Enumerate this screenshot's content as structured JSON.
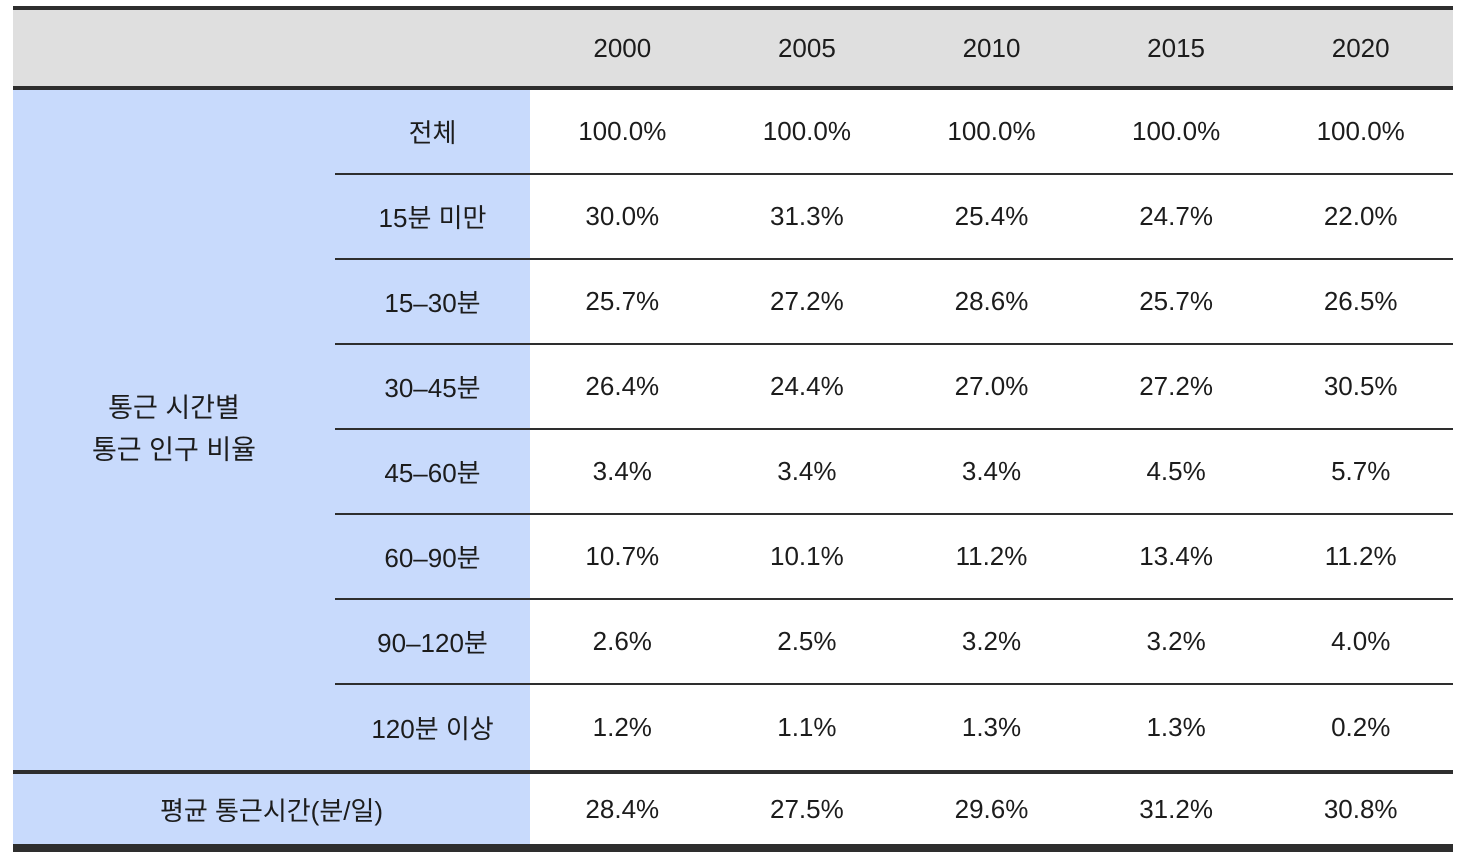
{
  "colors": {
    "header_bg": "#dfdfdf",
    "label_bg": "#c8dafc",
    "border": "#2e2e2e",
    "text": "#1c1c1c"
  },
  "table": {
    "group_label_line1": "통근 시간별",
    "group_label_line2": "통근 인구 비율",
    "years": [
      "2000",
      "2005",
      "2010",
      "2015",
      "2020"
    ],
    "rows": [
      {
        "label": "전체",
        "values": [
          "100.0%",
          "100.0%",
          "100.0%",
          "100.0%",
          "100.0%"
        ]
      },
      {
        "label": "15분 미만",
        "values": [
          "30.0%",
          "31.3%",
          "25.4%",
          "24.7%",
          "22.0%"
        ]
      },
      {
        "label": "15–30분",
        "values": [
          "25.7%",
          "27.2%",
          "28.6%",
          "25.7%",
          "26.5%"
        ]
      },
      {
        "label": "30–45분",
        "values": [
          "26.4%",
          "24.4%",
          "27.0%",
          "27.2%",
          "30.5%"
        ]
      },
      {
        "label": "45–60분",
        "values": [
          "3.4%",
          "3.4%",
          "3.4%",
          "4.5%",
          "5.7%"
        ]
      },
      {
        "label": "60–90분",
        "values": [
          "10.7%",
          "10.1%",
          "11.2%",
          "13.4%",
          "11.2%"
        ]
      },
      {
        "label": "90–120분",
        "values": [
          "2.6%",
          "2.5%",
          "3.2%",
          "3.2%",
          "4.0%"
        ]
      },
      {
        "label": "120분 이상",
        "values": [
          "1.2%",
          "1.1%",
          "1.3%",
          "1.3%",
          "0.2%"
        ]
      }
    ],
    "footer_row": {
      "label": "평균 통근시간(분/일)",
      "values": [
        "28.4%",
        "27.5%",
        "29.6%",
        "31.2%",
        "30.8%"
      ]
    }
  },
  "chart_data": {
    "type": "table",
    "title": "통근 시간별 통근 인구 비율",
    "columns": [
      "2000",
      "2005",
      "2010",
      "2015",
      "2020"
    ],
    "row_group_label": "통근 시간별 통근 인구 비율",
    "rows": [
      {
        "label": "전체",
        "values": [
          100.0,
          100.0,
          100.0,
          100.0,
          100.0
        ],
        "unit": "%"
      },
      {
        "label": "15분 미만",
        "values": [
          30.0,
          31.3,
          25.4,
          24.7,
          22.0
        ],
        "unit": "%"
      },
      {
        "label": "15–30분",
        "values": [
          25.7,
          27.2,
          28.6,
          25.7,
          26.5
        ],
        "unit": "%"
      },
      {
        "label": "30–45분",
        "values": [
          26.4,
          24.4,
          27.0,
          27.2,
          30.5
        ],
        "unit": "%"
      },
      {
        "label": "45–60분",
        "values": [
          3.4,
          3.4,
          3.4,
          4.5,
          5.7
        ],
        "unit": "%"
      },
      {
        "label": "60–90분",
        "values": [
          10.7,
          10.1,
          11.2,
          13.4,
          11.2
        ],
        "unit": "%"
      },
      {
        "label": "90–120분",
        "values": [
          2.6,
          2.5,
          3.2,
          3.2,
          4.0
        ],
        "unit": "%"
      },
      {
        "label": "120분 이상",
        "values": [
          1.2,
          1.1,
          1.3,
          1.3,
          0.2
        ],
        "unit": "%"
      },
      {
        "label": "평균 통근시간(분/일)",
        "values": [
          28.4,
          27.5,
          29.6,
          31.2,
          30.8
        ],
        "unit": "%"
      }
    ]
  }
}
